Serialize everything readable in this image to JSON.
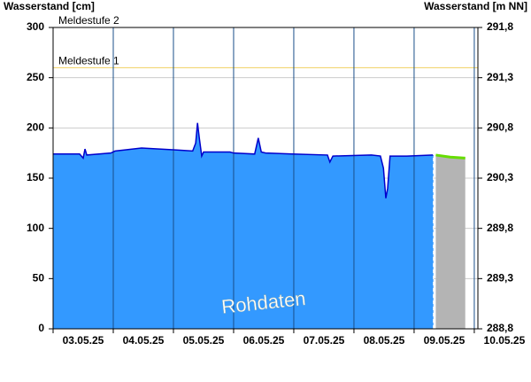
{
  "chart_data": {
    "type": "area",
    "y_label": "Wasserstand [cm]",
    "y2_label": "Wasserstand [m NN]",
    "annotation": "Rohdaten",
    "xlim": [
      0,
      7.06
    ],
    "xticks": [
      {
        "value": 0,
        "label": "03.05.25"
      },
      {
        "value": 1,
        "label": "04.05.25"
      },
      {
        "value": 2,
        "label": "05.05.25"
      },
      {
        "value": 3,
        "label": "06.05.25"
      },
      {
        "value": 4,
        "label": "07.05.25"
      },
      {
        "value": 5,
        "label": "08.05.25"
      },
      {
        "value": 6,
        "label": "09.05.25"
      },
      {
        "value": 7,
        "label": "10.05.25"
      }
    ],
    "ylim": [
      0,
      300
    ],
    "yticks": [
      0,
      50,
      100,
      150,
      200,
      250,
      300
    ],
    "y2lim": [
      288.8,
      291.8
    ],
    "y2ticks": [
      {
        "value": 288.8,
        "label": "288,8"
      },
      {
        "value": 289.3,
        "label": "289,3"
      },
      {
        "value": 289.8,
        "label": "289,8"
      },
      {
        "value": 290.3,
        "label": "290,3"
      },
      {
        "value": 290.8,
        "label": "290,8"
      },
      {
        "value": 291.3,
        "label": "291,3"
      },
      {
        "value": 291.8,
        "label": "291,8"
      }
    ],
    "grid": true,
    "thresholds": [
      {
        "label": "Meldestufe 2",
        "value": 300,
        "color": "#f0a030"
      },
      {
        "label": "Meldestufe 1",
        "value": 260,
        "color": "#f0d060"
      }
    ],
    "now": 6.32,
    "series": [
      {
        "color": "#0000cc",
        "fill": "#3399ff",
        "x": [
          0,
          0.44,
          0.5,
          0.53,
          0.56,
          0.96,
          1.03,
          1.18,
          1.47,
          2.06,
          2.32,
          2.37,
          2.4,
          2.43,
          2.47,
          2.5,
          2.94,
          3.0,
          3.35,
          3.41,
          3.46,
          3.53,
          3.97,
          4.56,
          4.6,
          4.65,
          5.29,
          5.44,
          5.49,
          5.53,
          5.56,
          5.6,
          5.88,
          6.32
        ],
        "values": [
          174,
          174,
          170,
          179,
          173,
          175,
          177,
          178,
          180,
          178,
          177,
          185,
          205,
          190,
          172,
          176,
          176,
          175,
          174,
          190,
          176,
          175,
          174,
          173,
          166,
          172,
          173,
          172,
          160,
          130,
          140,
          172,
          172,
          173
        ]
      },
      {
        "color": "#66dd00",
        "fill": "#b4b4b4",
        "x": [
          6.36,
          6.6,
          6.85
        ],
        "values": [
          173,
          171,
          170
        ]
      }
    ]
  }
}
